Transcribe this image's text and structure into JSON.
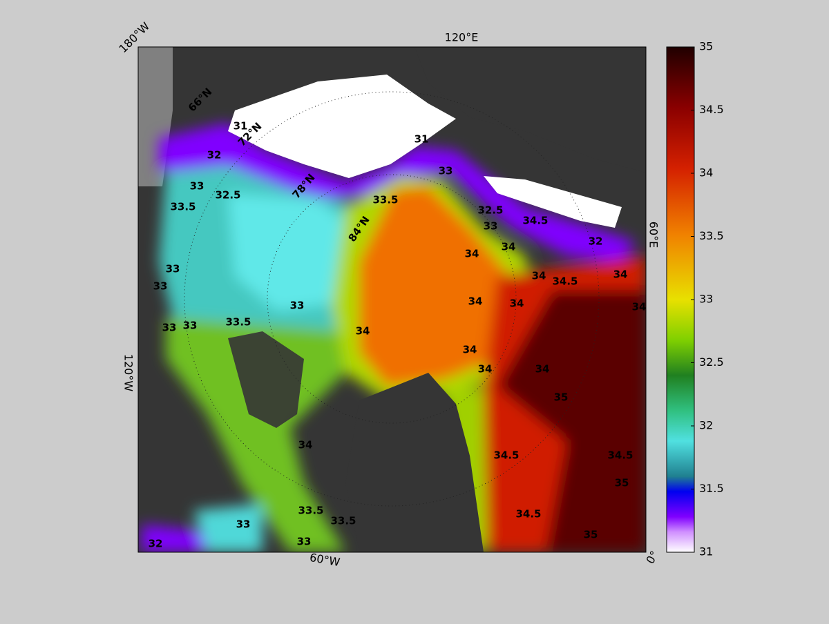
{
  "map": {
    "longitude_labels": [
      "180°W",
      "120°E",
      "60°E",
      "0°",
      "60°W",
      "120°W"
    ],
    "latitude_labels": [
      "66°N",
      "72°N",
      "78°N",
      "84°N"
    ],
    "contour_labels": [
      31,
      31,
      32,
      32.5,
      33,
      33.5,
      33,
      33,
      33,
      33,
      33,
      33.5,
      33.5,
      33,
      32.5,
      33,
      34.5,
      32,
      34,
      34,
      34.5,
      34,
      34,
      34,
      34,
      34,
      34,
      34,
      34,
      34,
      35,
      34.5,
      34.5,
      34,
      33.5,
      33.5,
      33,
      33,
      32,
      34.5,
      35,
      35
    ]
  },
  "colorbar": {
    "lim": [
      31,
      35
    ],
    "ticks": [
      31,
      31.5,
      32,
      32.5,
      33,
      33.5,
      34,
      34.5,
      35
    ]
  }
}
